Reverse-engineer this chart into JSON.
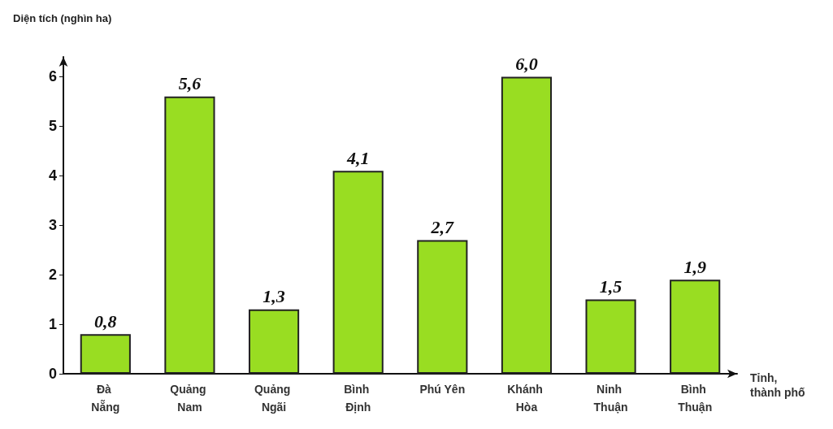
{
  "chart_data": {
    "type": "bar",
    "ylabel": "Diện tích (nghìn ha)",
    "xlabel": "Tỉnh, thành phố",
    "categories": [
      "Đà Nẵng",
      "Quảng Nam",
      "Quảng Ngãi",
      "Bình Định",
      "Phú Yên",
      "Khánh Hòa",
      "Ninh Thuận",
      "Bình Thuận"
    ],
    "values": [
      0.8,
      5.6,
      1.3,
      4.1,
      2.7,
      6.0,
      1.5,
      1.9
    ],
    "value_labels": [
      "0,8",
      "5,6",
      "1,3",
      "4,1",
      "2,7",
      "6,0",
      "1,5",
      "1,9"
    ],
    "color": "#99dd22",
    "ylim": [
      0,
      6.4
    ],
    "yticks": [
      0,
      1,
      2,
      3,
      4,
      5,
      6
    ],
    "grid": false
  }
}
